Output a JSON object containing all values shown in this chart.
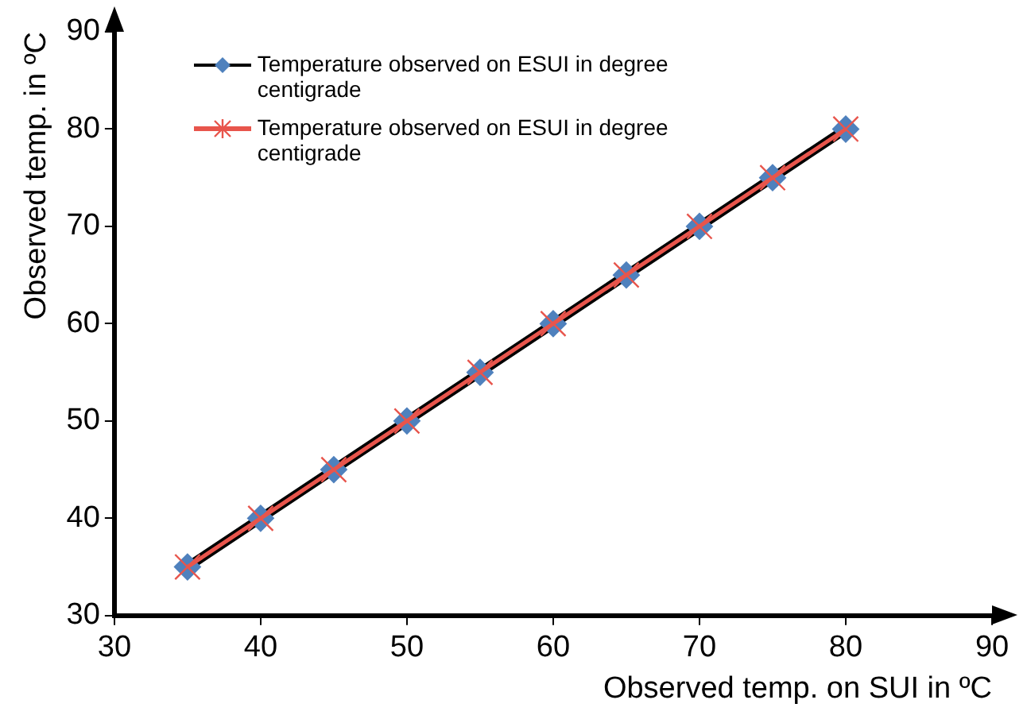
{
  "chart_data": {
    "type": "line",
    "xlabel": "Observed temp. on SUI in ºC",
    "ylabel": "Observed temp. in ºC",
    "x": [
      35,
      40,
      45,
      50,
      55,
      60,
      65,
      70,
      75,
      80
    ],
    "series": [
      {
        "name": "Temperature observed on ESUI in degree centigrade",
        "color": "#4f81bd",
        "marker": "diamond",
        "values": [
          35,
          40,
          45,
          50,
          55,
          60,
          65,
          70,
          75,
          80
        ]
      },
      {
        "name": "Temperature observed on ESUI in degree centigrade",
        "color": "#e8554c",
        "marker": "cross",
        "values": [
          35,
          40,
          45,
          50,
          55,
          60,
          65,
          70,
          75,
          80
        ]
      }
    ],
    "xlim": [
      30,
      90
    ],
    "xticks": [
      30,
      40,
      50,
      60,
      70,
      80,
      90
    ],
    "ylim": [
      30,
      90
    ],
    "yticks": [
      30,
      40,
      50,
      60,
      70,
      80,
      90
    ],
    "grid": false,
    "legend": "top"
  }
}
